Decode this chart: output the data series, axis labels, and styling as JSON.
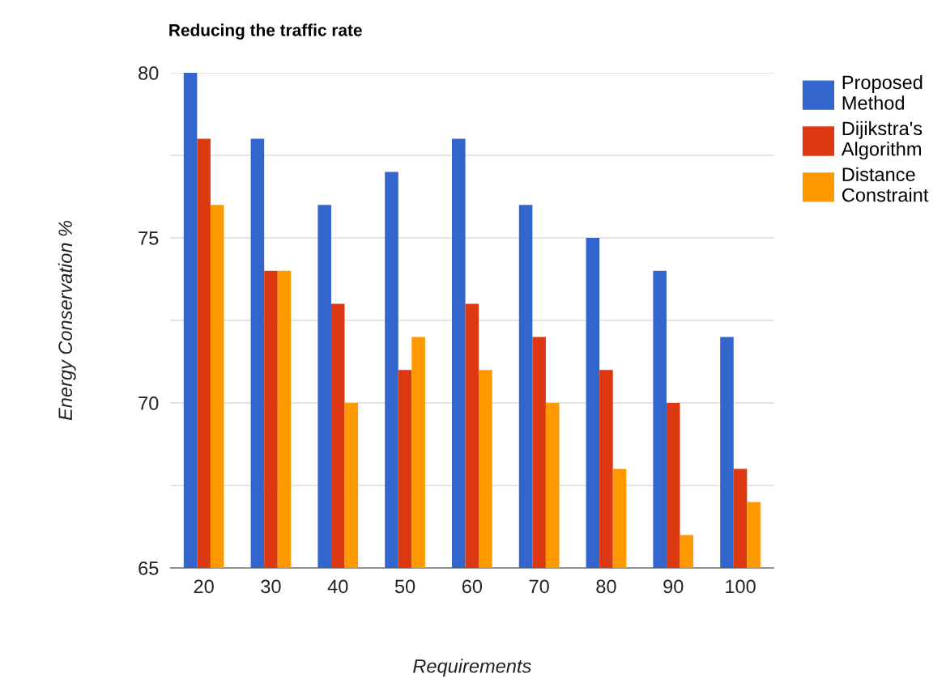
{
  "chart_data": {
    "type": "bar",
    "title": "Reducing the traffic rate",
    "xlabel": "Requirements",
    "ylabel": "Energy Conservation %",
    "categories": [
      "20",
      "30",
      "40",
      "50",
      "60",
      "70",
      "80",
      "90",
      "100"
    ],
    "series": [
      {
        "name": "Proposed Method",
        "color": "#3366cc",
        "values": [
          80,
          78,
          76,
          77,
          78,
          76,
          75,
          74,
          72
        ]
      },
      {
        "name": "Dijikstra's Algorithm",
        "color": "#dc3912",
        "values": [
          78,
          74,
          73,
          71,
          73,
          72,
          71,
          70,
          68
        ]
      },
      {
        "name": "Distance Constraint",
        "color": "#ff9900",
        "values": [
          76,
          74,
          70,
          72,
          71,
          70,
          68,
          66,
          67
        ]
      }
    ],
    "ylim": [
      65,
      80
    ],
    "yticks": [
      65,
      {
        "value": 67.5,
        "label": null
      },
      70,
      {
        "value": 72.5,
        "label": null
      },
      75,
      {
        "value": 77.5,
        "label": null
      },
      80
    ],
    "grid": "y",
    "legend": "top right"
  }
}
